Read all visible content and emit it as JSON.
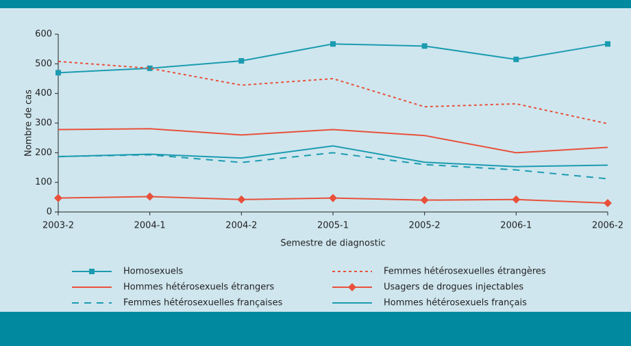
{
  "chart_data": {
    "type": "line",
    "x_label": "Semestre de diagnostic",
    "y_label": "Nombre de cas",
    "categories": [
      "2003-2",
      "2004-1",
      "2004-2",
      "2005-1",
      "2005-2",
      "2006-1",
      "2006-2"
    ],
    "ylim": [
      0,
      600
    ],
    "yticks": [
      0,
      100,
      200,
      300,
      400,
      500,
      600
    ],
    "series": [
      {
        "name": "Homosexuels",
        "color": "#1b9bb0",
        "line_style": "solid",
        "marker": "square",
        "values": [
          470,
          485,
          510,
          567,
          560,
          515,
          567
        ]
      },
      {
        "name": "Femmes hétérosexuelles étrangères",
        "color": "#e8503a",
        "line_style": "dotted",
        "values": [
          508,
          485,
          428,
          450,
          355,
          365,
          298
        ]
      },
      {
        "name": "Hommes hétérosexuels étrangers",
        "color": "#e8503a",
        "line_style": "solid",
        "values": [
          278,
          281,
          260,
          278,
          258,
          200,
          218
        ]
      },
      {
        "name": "Usagers de drogues injectables",
        "color": "#e8503a",
        "line_style": "solid",
        "marker": "diamond",
        "values": [
          47,
          52,
          42,
          47,
          40,
          42,
          30
        ]
      },
      {
        "name": "Femmes hétérosexuelles françaises",
        "color": "#1b9bb0",
        "line_style": "dashed",
        "values": [
          187,
          193,
          167,
          200,
          160,
          142,
          112
        ]
      },
      {
        "name": "Hommes hétérosexuels français",
        "color": "#1b9bb0",
        "line_style": "solid",
        "values": [
          187,
          195,
          182,
          223,
          168,
          153,
          158
        ]
      }
    ]
  }
}
